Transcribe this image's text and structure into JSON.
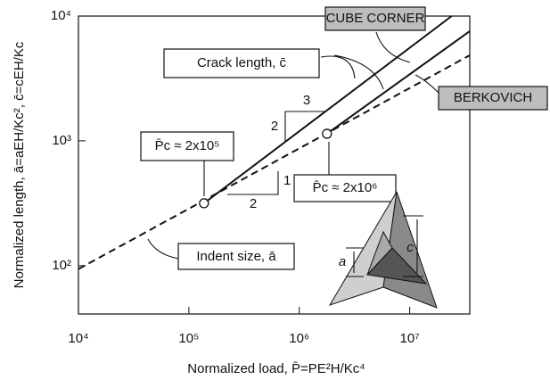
{
  "chart_data": {
    "type": "line",
    "log_x": true,
    "log_y": true,
    "xlabel": "Normalized load, P̄=PE²H/Kc⁴",
    "ylabel": "Normalized length, ā=aEH/Kc², c̄=cEH/Kc",
    "xlim": [
      10000,
      35000000
    ],
    "ylim": [
      41,
      10000
    ],
    "xticks": [
      {
        "value": 10000,
        "label": "10⁴"
      },
      {
        "value": 100000,
        "label": "10⁵"
      },
      {
        "value": 1000000,
        "label": "10⁶"
      },
      {
        "value": 10000000,
        "label": "10⁷"
      }
    ],
    "yticks": [
      {
        "value": 100,
        "label": "10²"
      },
      {
        "value": 1000,
        "label": "10³"
      },
      {
        "value": 10000,
        "label": "10⁴"
      }
    ],
    "color": "#111111",
    "series": [
      {
        "style": "dashed",
        "x": [
          10000,
          35000000
        ],
        "values": [
          94,
          4850
        ]
      },
      {
        "style": "solid",
        "x": [
          137000,
          24000000
        ],
        "values": [
          316,
          10000
        ]
      },
      {
        "style": "solid",
        "x": [
          1780000,
          35000000
        ],
        "values": [
          1140,
          7560
        ]
      },
      {
        "style": "markers",
        "x": [
          137000,
          1780000
        ],
        "values": [
          316,
          1140
        ]
      }
    ],
    "annotations": {
      "cube_corner": "CUBE CORNER",
      "crack_length": "Crack length, c̄",
      "berkovich": "BERKOVICH",
      "pc_low": "P̄c ≈ 2x10⁵",
      "pc_high": "P̄c ≈ 2x10⁶",
      "indent_size": "Indent size, ā",
      "slope_low_rise": "1",
      "slope_low_run": "2",
      "slope_high_rise": "2",
      "slope_high_run": "3",
      "inset_a": "a",
      "inset_c": "c"
    }
  }
}
